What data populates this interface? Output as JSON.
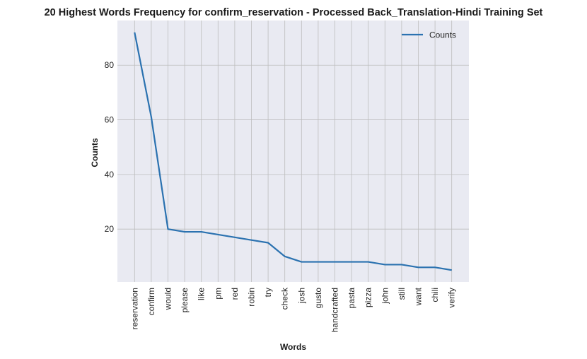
{
  "chart_data": {
    "type": "line",
    "title": "20 Highest Words Frequency for confirm_reservation - Processed Back_Translation-Hindi Training Set",
    "xlabel": "Words",
    "ylabel": "Counts",
    "categories": [
      "reservation",
      "confirm",
      "would",
      "please",
      "like",
      "pm",
      "red",
      "robin",
      "try",
      "check",
      "josh",
      "gusto",
      "handcrafted",
      "pasta",
      "pizza",
      "john",
      "still",
      "want",
      "chili",
      "verify"
    ],
    "series": [
      {
        "name": "Counts",
        "values": [
          92,
          61,
          20,
          19,
          19,
          18,
          17,
          16,
          15,
          10,
          8,
          8,
          8,
          8,
          8,
          7,
          7,
          6,
          6,
          5
        ]
      }
    ],
    "yticks": [
      20,
      40,
      60,
      80
    ],
    "ylim": [
      0.65,
      96.35
    ],
    "grid": true,
    "legend": "top-right",
    "colors": {
      "line": "#2b72b0",
      "background": "#e9eaf2",
      "grid": "#bdbdbd"
    }
  }
}
